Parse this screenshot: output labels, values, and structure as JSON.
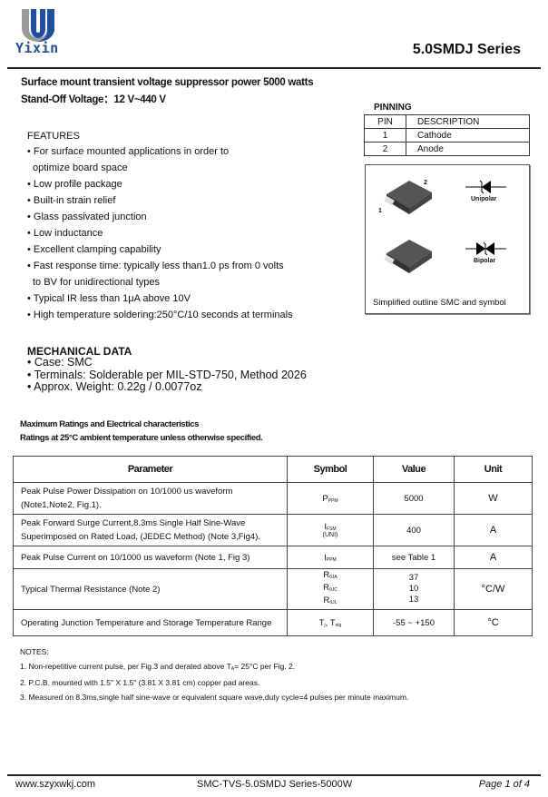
{
  "header": {
    "brand": "Yixin",
    "series": "5.0SMDJ  Series",
    "brand_color": "#1f4fa0"
  },
  "intro": {
    "line1": "Surface mount transient  voltage suppressor power 5000 watts",
    "line2": "Stand-Off Voltage：12 V~440 V"
  },
  "features": {
    "title": "FEATURES",
    "items": [
      "• For surface mounted applications in order to",
      "  optimize board space",
      "• Low profile package",
      "• Built-in strain relief",
      "• Glass passivated junction",
      "• Low inductance",
      "• Excellent clamping capability",
      "• Fast response time: typically less than1.0 ps from 0 volts",
      "  to BV for unidirectional types",
      "• Typical IR less than 1μA above 10V",
      "• High temperature soldering:250°C/10 seconds at terminals"
    ]
  },
  "mechanical": {
    "title": "MECHANICAL DATA",
    "items": [
      "• Case: SMC",
      "• Terminals: Solderable per MIL-STD-750, Method 2026",
      "• Approx. Weight: 0.22g / 0.0077oz"
    ]
  },
  "pinning": {
    "title": "PINNING",
    "headers": [
      "PIN",
      "DESCRIPTION"
    ],
    "rows": [
      [
        "1",
        "Cathode"
      ],
      [
        "2",
        "Anode"
      ]
    ]
  },
  "package": {
    "pin1": "1",
    "pin2": "2",
    "unipolar": "Unipolar",
    "bipolar": "Bipolar",
    "caption": "Simplified outline SMC and symbol"
  },
  "ratings": {
    "title": "Maximum Ratings and Electrical characteristics",
    "subtitle": "Ratings at 25°C ambient temperature unless otherwise specified."
  },
  "table": {
    "headers": [
      "Parameter",
      "Symbol",
      "Value",
      "Unit"
    ],
    "rows": [
      {
        "param1": "Peak Pulse Power Dissipation on 10/1000 us waveform",
        "param2": " (Note1,Note2, Fig.1).",
        "sym": "P",
        "sub": "PPM",
        "value": "5000",
        "unit": "W"
      },
      {
        "param1": "Peak Forward Surge Current,8.3ms Single Half Sine-Wave",
        "param2": "Superimposed on Rated Load, (JEDEC Method) (Note 3,Fig4).",
        "sym": "I",
        "sub": "FSM",
        "sym2": "(UNI)",
        "value": "400",
        "unit": "A"
      },
      {
        "param1": "Peak Pulse Current on 10/1000 us waveform (Note 1, Fig 3)",
        "sym": "I",
        "sub": "PPM",
        "value": "see Table 1",
        "unit": "A"
      },
      {
        "param1": "Typical Thermal Resistance  (Note 2)",
        "syms": [
          "R",
          "R",
          "R"
        ],
        "subs": [
          "θJA",
          "θJC",
          "θJL"
        ],
        "values": [
          "37",
          "10",
          "13"
        ],
        "unit": "°C/W"
      },
      {
        "param1": "Operating Junction Temperature and Storage Temperature Range",
        "sym": "T",
        "sub": "j",
        "sym_b": ", T",
        "sub_b": "stg",
        "value": "-55 ~ +150",
        "unit": "°C"
      }
    ]
  },
  "notes": {
    "title": "NOTES:",
    "n1a": "1. Non-repetitive current pulse, per Fig.3 and derated above T",
    "n1sub": "A",
    "n1b": "= 25°C  per Fig. 2.",
    "n2": "2. P.C.B. mounted with 1.5\" X 1.5\" (3.81 X 3.81 cm) copper pad areas.",
    "n3": "3. Measured on 8.3ms,single half sine-wave or equivalent square wave,duty cycle=4 pulses per minute maximum."
  },
  "footer": {
    "website": "www.szyxwkj.com",
    "doc": "SMC-TVS-5.0SMDJ  Series-5000W",
    "page": "Page  1  of  4"
  }
}
